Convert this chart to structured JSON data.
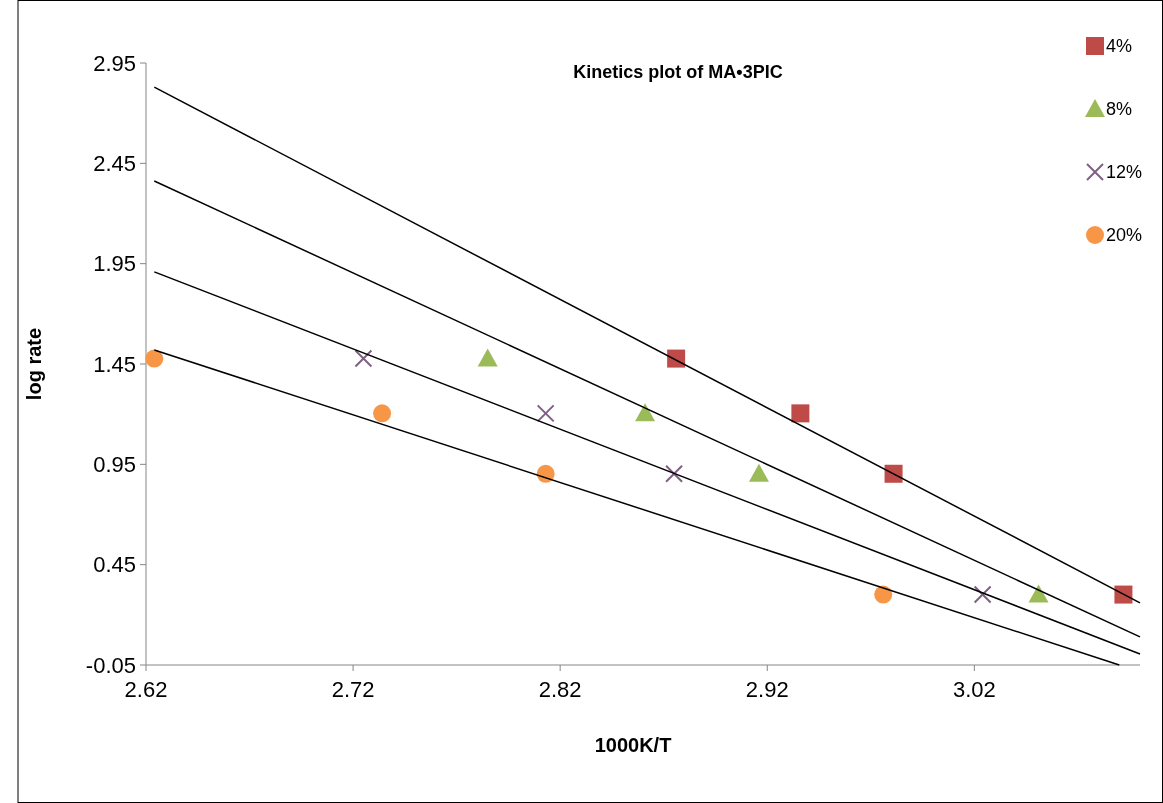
{
  "chart_data": {
    "type": "scatter",
    "title": "Kinetics plot of MA•3PIC",
    "xlabel": "1000K/T",
    "ylabel": "log rate",
    "xlim": [
      2.62,
      3.1
    ],
    "ylim": [
      -0.05,
      2.95
    ],
    "xticks": [
      2.62,
      2.72,
      2.82,
      2.92,
      3.02
    ],
    "yticks": [
      -0.05,
      0.45,
      0.95,
      1.45,
      1.95,
      2.45,
      2.95
    ],
    "grid": false,
    "legend": "top right",
    "series": [
      {
        "name": "4%",
        "color": "#be4b48",
        "marker": "square",
        "x": [
          2.876,
          2.936,
          2.981,
          3.092
        ],
        "values": [
          1.477,
          1.204,
          0.903,
          0.301
        ]
      },
      {
        "name": "8%",
        "color": "#9bbb59",
        "marker": "triangle",
        "x": [
          2.785,
          2.861,
          2.916,
          3.051
        ],
        "values": [
          1.477,
          1.204,
          0.903,
          0.301
        ]
      },
      {
        "name": "12%",
        "color": "#7f6084",
        "marker": "cross",
        "x": [
          2.725,
          2.813,
          2.875,
          3.024
        ],
        "values": [
          1.477,
          1.204,
          0.903,
          0.301
        ]
      },
      {
        "name": "20%",
        "color": "#f79646",
        "marker": "circle",
        "x": [
          2.624,
          2.734,
          2.813,
          2.976
        ],
        "values": [
          1.477,
          1.204,
          0.903,
          0.301
        ]
      },
      {
        "type": "line",
        "color": "#000000",
        "marker": "none",
        "x": [
          2.624,
          3.1
        ],
        "values": [
          2.83,
          0.26
        ]
      },
      {
        "type": "line",
        "color": "#000000",
        "marker": "none",
        "x": [
          2.624,
          3.1
        ],
        "values": [
          2.362,
          0.09
        ]
      },
      {
        "type": "line",
        "color": "#000000",
        "marker": "none",
        "x": [
          2.624,
          3.1
        ],
        "values": [
          1.909,
          0.005
        ]
      },
      {
        "type": "line",
        "color": "#000000",
        "marker": "none",
        "x": [
          2.624,
          3.09
        ],
        "values": [
          1.52,
          -0.05
        ]
      }
    ]
  }
}
